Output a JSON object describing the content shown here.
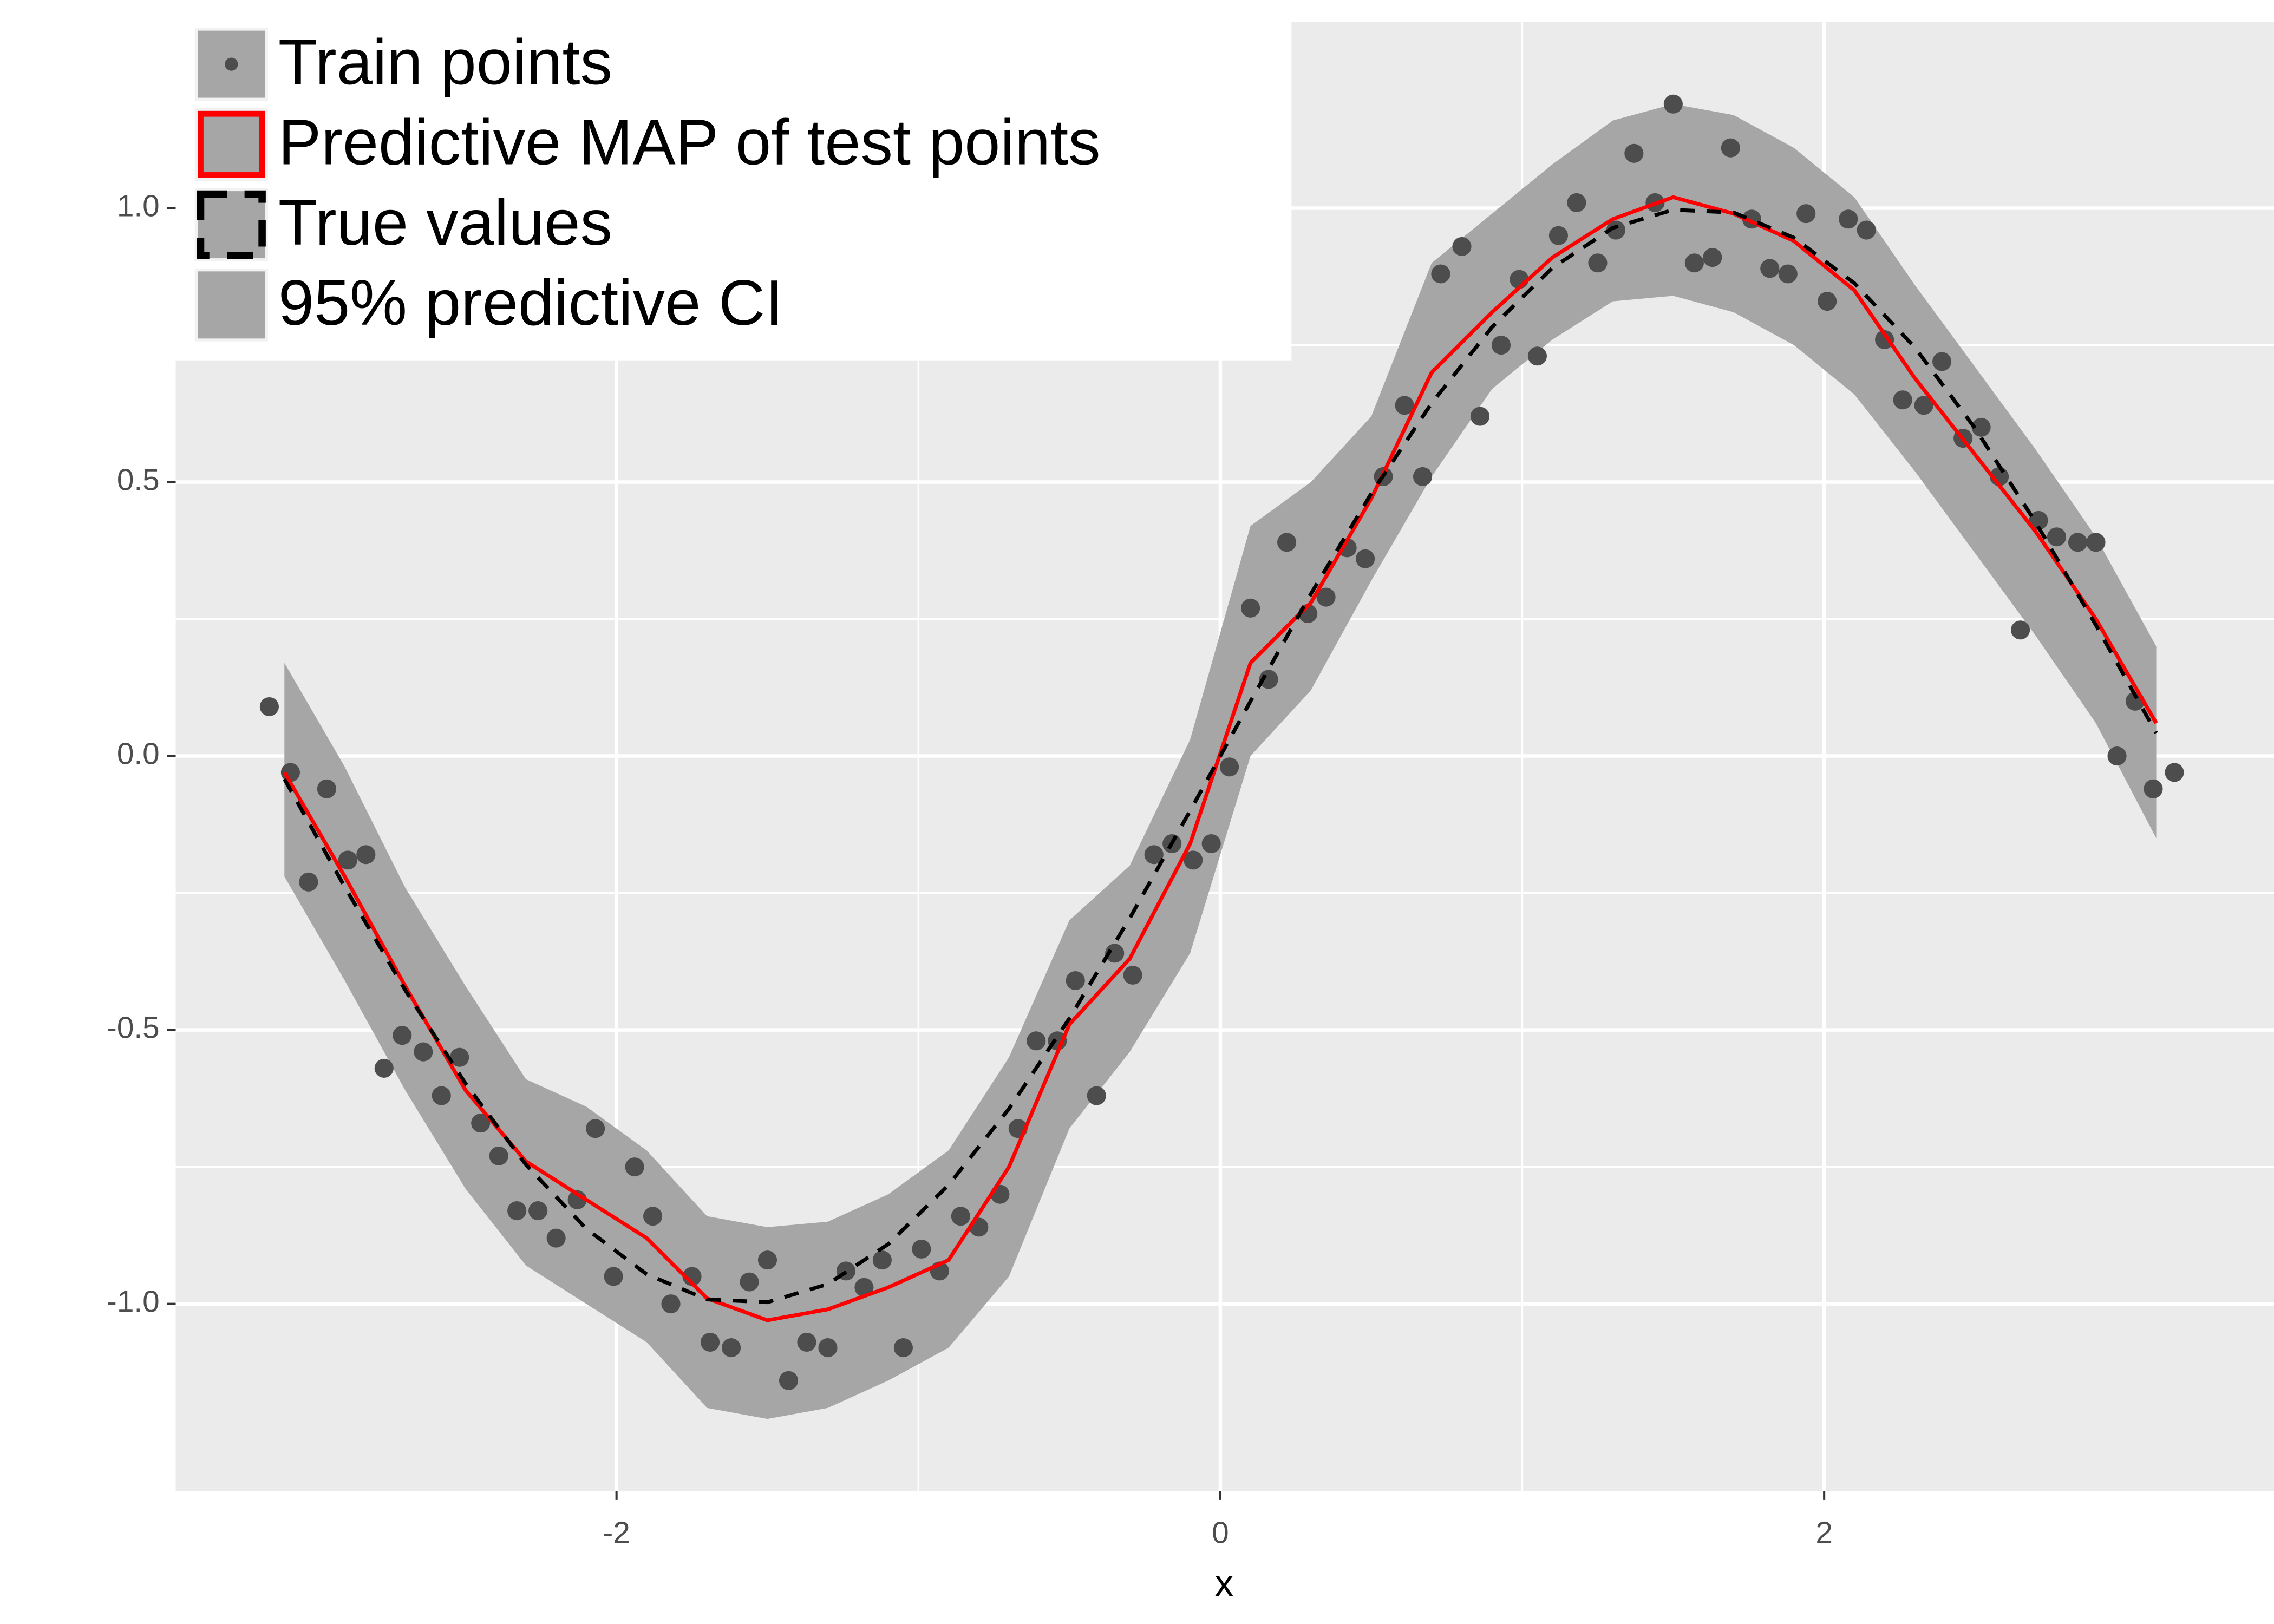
{
  "chart_data": {
    "type": "scatter",
    "x_label": "x",
    "xlim": [
      -3.46,
      3.49
    ],
    "ylim": [
      -1.342,
      1.34
    ],
    "xticks": [
      -2,
      0,
      2
    ],
    "yticks": [
      {
        "value": -1,
        "label": "-1.0"
      },
      -0.5,
      {
        "value": 0,
        "label": "0.0"
      },
      0.5,
      {
        "value": 1,
        "label": "1.0"
      }
    ],
    "grid": true,
    "legend": "top-left",
    "points": {
      "name": "Train points",
      "color": "#4d4d4d",
      "x": [
        -3.15,
        -3.08,
        -3.02,
        -2.96,
        -2.89,
        -2.83,
        -2.77,
        -2.71,
        -2.64,
        -2.58,
        -2.52,
        -2.45,
        -2.39,
        -2.33,
        -2.26,
        -2.2,
        -2.13,
        -2.07,
        -2.01,
        -1.94,
        -1.88,
        -1.82,
        -1.75,
        -1.69,
        -1.62,
        -1.56,
        -1.5,
        -1.43,
        -1.37,
        -1.3,
        -1.24,
        -1.18,
        -1.12,
        -1.05,
        -0.99,
        -0.93,
        -0.86,
        -0.8,
        -0.73,
        -0.67,
        -0.61,
        -0.54,
        -0.48,
        -0.41,
        -0.35,
        -0.29,
        -0.22,
        -0.16,
        -0.09,
        -0.03,
        0.03,
        0.1,
        0.16,
        0.22,
        0.29,
        0.35,
        0.42,
        0.48,
        0.54,
        0.61,
        0.67,
        0.73,
        0.8,
        0.86,
        0.93,
        0.99,
        1.05,
        1.12,
        1.18,
        1.25,
        1.31,
        1.37,
        1.44,
        1.5,
        1.57,
        1.63,
        1.69,
        1.76,
        1.82,
        1.88,
        1.94,
        2.01,
        2.08,
        2.14,
        2.2,
        2.26,
        2.33,
        2.39,
        2.46,
        2.52,
        2.58,
        2.65,
        2.71,
        2.77,
        2.84,
        2.9,
        2.97,
        3.03,
        3.09,
        3.16
      ],
      "values": [
        0.09,
        -0.03,
        -0.23,
        -0.06,
        -0.19,
        -0.18,
        -0.57,
        -0.51,
        -0.54,
        -0.62,
        -0.55,
        -0.67,
        -0.73,
        -0.83,
        -0.83,
        -0.88,
        -0.81,
        -0.68,
        -0.95,
        -0.75,
        -0.84,
        -1.0,
        -0.95,
        -1.07,
        -1.08,
        -0.96,
        -0.92,
        -1.14,
        -1.07,
        -1.08,
        -0.94,
        -0.97,
        -0.92,
        -1.08,
        -0.9,
        -0.94,
        -0.84,
        -0.86,
        -0.8,
        -0.68,
        -0.52,
        -0.52,
        -0.41,
        -0.62,
        -0.36,
        -0.4,
        -0.18,
        -0.16,
        -0.19,
        -0.16,
        -0.02,
        0.27,
        0.14,
        0.39,
        0.26,
        0.29,
        0.38,
        0.36,
        0.51,
        0.64,
        0.51,
        0.88,
        0.93,
        0.62,
        0.75,
        0.87,
        0.73,
        0.95,
        1.01,
        0.9,
        0.96,
        1.1,
        1.01,
        1.19,
        0.9,
        0.91,
        1.11,
        0.98,
        0.89,
        0.88,
        0.99,
        0.83,
        0.98,
        0.96,
        0.76,
        0.65,
        0.64,
        0.72,
        0.58,
        0.6,
        0.51,
        0.23,
        0.43,
        0.4,
        0.39,
        0.39,
        0.0,
        0.1,
        -0.06,
        -0.03
      ]
    },
    "x": [
      -3.1,
      -2.9,
      -2.7,
      -2.5,
      -2.3,
      -2.1,
      -1.9,
      -1.7,
      -1.5,
      -1.3,
      -1.1,
      -0.9,
      -0.7,
      -0.5,
      -0.3,
      -0.1,
      0.1,
      0.3,
      0.5,
      0.7,
      0.9,
      1.1,
      1.3,
      1.5,
      1.7,
      1.9,
      2.1,
      2.3,
      2.5,
      2.7,
      2.9,
      3.1
    ],
    "series": [
      {
        "name": "Predictive MAP of test points",
        "color": "#ff0000",
        "dashed": false,
        "values": [
          -0.03,
          -0.22,
          -0.42,
          -0.61,
          -0.74,
          -0.81,
          -0.88,
          -0.99,
          -1.03,
          -1.01,
          -0.97,
          -0.92,
          -0.75,
          -0.49,
          -0.37,
          -0.16,
          0.17,
          0.28,
          0.47,
          0.7,
          0.81,
          0.91,
          0.98,
          1.02,
          0.99,
          0.94,
          0.85,
          0.69,
          0.55,
          0.41,
          0.25,
          0.06
        ]
      },
      {
        "name": "True values",
        "color": "#000000",
        "dashed": true,
        "values": [
          -0.042,
          -0.239,
          -0.427,
          -0.598,
          -0.746,
          -0.863,
          -0.946,
          -0.992,
          -0.997,
          -0.964,
          -0.891,
          -0.783,
          -0.644,
          -0.479,
          -0.296,
          -0.1,
          0.1,
          0.296,
          0.479,
          0.644,
          0.783,
          0.891,
          0.964,
          0.997,
          0.992,
          0.946,
          0.863,
          0.746,
          0.598,
          0.427,
          0.239,
          0.042
        ]
      }
    ],
    "band": {
      "name": "95% predictive CI",
      "color": "#a6a6a6",
      "upper": [
        0.17,
        -0.02,
        -0.24,
        -0.42,
        -0.59,
        -0.64,
        -0.72,
        -0.84,
        -0.86,
        -0.85,
        -0.8,
        -0.72,
        -0.55,
        -0.3,
        -0.2,
        0.03,
        0.42,
        0.5,
        0.62,
        0.9,
        0.99,
        1.08,
        1.16,
        1.19,
        1.17,
        1.11,
        1.02,
        0.86,
        0.71,
        0.56,
        0.4,
        0.2
      ],
      "lower": [
        -0.22,
        -0.41,
        -0.61,
        -0.79,
        -0.93,
        -1.0,
        -1.07,
        -1.19,
        -1.21,
        -1.19,
        -1.14,
        -1.08,
        -0.95,
        -0.68,
        -0.54,
        -0.36,
        0.0,
        0.12,
        0.32,
        0.51,
        0.67,
        0.76,
        0.83,
        0.84,
        0.81,
        0.75,
        0.66,
        0.52,
        0.37,
        0.22,
        0.06,
        -0.15
      ]
    }
  }
}
